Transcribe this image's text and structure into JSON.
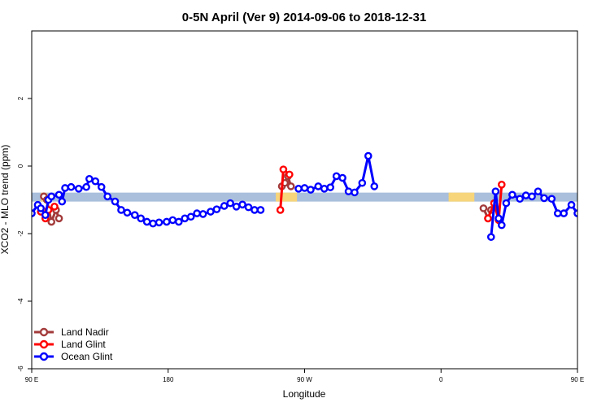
{
  "chart_data": {
    "type": "line",
    "title": "0-5N April (Ver 9)   2014-09-06 to 2018-12-31",
    "xlabel": "Longitude",
    "ylabel": "XCO2 - MLO trend (ppm)",
    "xlim": [
      90,
      450
    ],
    "ylim": [
      -6,
      4
    ],
    "x_ticks": [
      {
        "value": 90,
        "label": "90 E"
      },
      {
        "value": 180,
        "label": "180"
      },
      {
        "value": 270,
        "label": "90 W"
      },
      {
        "value": 360,
        "label": "0"
      },
      {
        "value": 450,
        "label": "90 E"
      },
      {
        "value": 540,
        "label": "180"
      }
    ],
    "y_ticks": [
      -6,
      -4,
      -2,
      0,
      2
    ],
    "legend_position": "bottom-left",
    "bands": [
      {
        "name": "ocean-band",
        "color": "#a9bfdc",
        "y": -0.92,
        "segments": [
          [
            90,
            540
          ]
        ]
      },
      {
        "name": "land-band",
        "color": "#f7d57a",
        "y": -0.92,
        "segments": [
          [
            96,
            100
          ],
          [
            251,
            265
          ],
          [
            365,
            382
          ],
          [
            470,
            478
          ]
        ]
      }
    ],
    "series": [
      {
        "name": "Land Nadir",
        "color": "#a33a3a",
        "segments": [
          [
            [
              98,
              -0.9
            ],
            [
              100,
              -1.0
            ],
            [
              103,
              -1.65
            ],
            [
              106,
              -1.3
            ],
            [
              108,
              -1.55
            ]
          ],
          [
            [
              255,
              -0.6
            ],
            [
              257,
              -0.5
            ],
            [
              259,
              -0.3
            ],
            [
              261,
              -0.6
            ]
          ],
          [
            [
              388,
              -1.25
            ],
            [
              391,
              -1.55
            ],
            [
              393,
              -1.3
            ]
          ],
          [
            [
              474,
              -0.9
            ],
            [
              476,
              -1.15
            ],
            [
              481,
              -1.65
            ],
            [
              483,
              -1.35
            ],
            [
              486,
              -1.55
            ]
          ]
        ]
      },
      {
        "name": "Land Glint",
        "color": "#ff0000",
        "segments": [
          [
            [
              96,
              -1.35
            ],
            [
              99,
              -1.55
            ],
            [
              101,
              -1.3
            ],
            [
              105,
              -1.2
            ]
          ],
          [
            [
              254,
              -1.3
            ],
            [
              256,
              -0.1
            ],
            [
              260,
              -0.25
            ]
          ],
          [
            [
              391,
              -1.55
            ],
            [
              395,
              -1.1
            ],
            [
              398,
              -1.6
            ],
            [
              400,
              -0.55
            ]
          ],
          [
            [
              472,
              -1.35
            ],
            [
              475,
              -1.55
            ],
            [
              479,
              -1.05
            ]
          ]
        ]
      },
      {
        "name": "Ocean Glint",
        "color": "#0000ff",
        "segments": [
          [
            [
              90,
              -1.4
            ],
            [
              94,
              -1.15
            ],
            [
              96,
              -1.25
            ],
            [
              99,
              -1.45
            ],
            [
              101,
              -1.0
            ],
            [
              103,
              -0.9
            ],
            [
              108,
              -0.85
            ],
            [
              110,
              -1.05
            ],
            [
              112,
              -0.65
            ],
            [
              116,
              -0.62
            ],
            [
              121,
              -0.67
            ],
            [
              126,
              -0.62
            ],
            [
              128,
              -0.38
            ],
            [
              132,
              -0.45
            ],
            [
              136,
              -0.62
            ],
            [
              140,
              -0.9
            ],
            [
              145,
              -1.05
            ],
            [
              149,
              -1.3
            ],
            [
              153,
              -1.38
            ],
            [
              158,
              -1.45
            ],
            [
              162,
              -1.55
            ],
            [
              166,
              -1.65
            ],
            [
              170,
              -1.7
            ],
            [
              174,
              -1.67
            ],
            [
              179,
              -1.65
            ],
            [
              183,
              -1.6
            ],
            [
              187,
              -1.65
            ],
            [
              191,
              -1.55
            ],
            [
              195,
              -1.5
            ],
            [
              199,
              -1.4
            ],
            [
              203,
              -1.42
            ],
            [
              208,
              -1.35
            ],
            [
              212,
              -1.28
            ],
            [
              217,
              -1.18
            ],
            [
              221,
              -1.1
            ],
            [
              225,
              -1.2
            ],
            [
              229,
              -1.14
            ],
            [
              233,
              -1.22
            ],
            [
              237,
              -1.3
            ],
            [
              241,
              -1.3
            ]
          ],
          [
            [
              266,
              -0.67
            ],
            [
              270,
              -0.65
            ],
            [
              274,
              -0.7
            ],
            [
              279,
              -0.6
            ],
            [
              283,
              -0.67
            ],
            [
              287,
              -0.63
            ],
            [
              291,
              -0.3
            ],
            [
              295,
              -0.35
            ],
            [
              299,
              -0.75
            ],
            [
              303,
              -0.78
            ],
            [
              308,
              -0.5
            ],
            [
              312,
              0.3
            ],
            [
              316,
              -0.6
            ]
          ],
          [
            [
              393,
              -2.1
            ],
            [
              396,
              -0.75
            ],
            [
              398,
              -1.55
            ],
            [
              400,
              -1.75
            ],
            [
              403,
              -1.1
            ],
            [
              407,
              -0.85
            ],
            [
              412,
              -0.97
            ],
            [
              416,
              -0.87
            ],
            [
              420,
              -0.9
            ],
            [
              424,
              -0.75
            ],
            [
              428,
              -0.95
            ],
            [
              433,
              -0.97
            ],
            [
              437,
              -1.4
            ],
            [
              441,
              -1.4
            ],
            [
              446,
              -1.15
            ],
            [
              450,
              -1.4
            ]
          ]
        ]
      }
    ]
  }
}
